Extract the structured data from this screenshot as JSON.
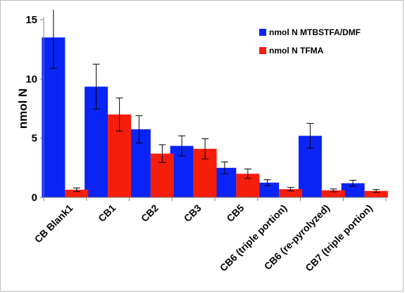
{
  "chart_data": {
    "type": "bar",
    "title": "",
    "xlabel": "",
    "ylabel": "nmol N",
    "ylim": [
      0,
      15
    ],
    "yticks": [
      0,
      5,
      10,
      15
    ],
    "grid": false,
    "legend_position": "top-right",
    "categories": [
      "CB Blank1",
      "CB1",
      "CB2",
      "CB3",
      "CB5",
      "CB6 (triple portion)",
      "CB6 (re-pyrolyzed)",
      "CB7 (triple portion)"
    ],
    "series": [
      {
        "name": "nmol N MTBSTFA/DMF",
        "color": "#0a24f5",
        "values": [
          13.5,
          9.35,
          5.75,
          4.35,
          2.5,
          1.25,
          5.2,
          1.2
        ],
        "error": [
          2.6,
          1.9,
          1.15,
          0.85,
          0.5,
          0.25,
          1.05,
          0.25
        ]
      },
      {
        "name": "nmol N TFMA",
        "color": "#f51e0a",
        "values": [
          0.65,
          7.0,
          3.7,
          4.1,
          2.0,
          0.7,
          0.6,
          0.55
        ],
        "error": [
          0.15,
          1.4,
          0.75,
          0.85,
          0.4,
          0.15,
          0.12,
          0.12
        ]
      }
    ]
  }
}
